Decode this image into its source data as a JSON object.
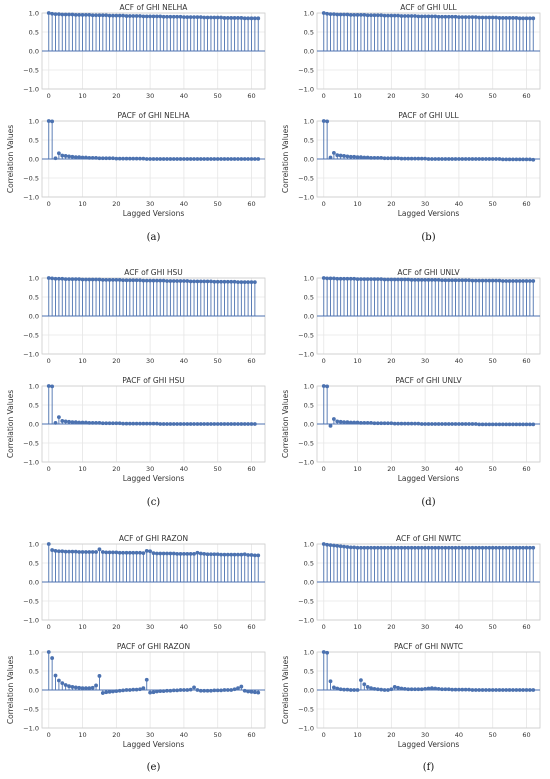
{
  "colors": {
    "series": "#4c72b0",
    "grid": "#e6e6e6",
    "frame": "#cccccc",
    "text": "#333333"
  },
  "labels": {
    "xlabel": "Lagged Versions",
    "ylabel": "Correlation Values"
  },
  "captions": [
    "(a)",
    "(b)",
    "(c)",
    "(d)",
    "(e)",
    "(f)"
  ],
  "chart_data": [
    {
      "type": "stem",
      "panel": "a-top",
      "title": "ACF of GHI NELHA",
      "xlim": [
        -2,
        64
      ],
      "ylim": [
        -1,
        1
      ],
      "xticks": [
        0,
        10,
        20,
        30,
        40,
        50,
        60
      ],
      "yticks": [
        -1,
        -0.5,
        0,
        0.5,
        1
      ],
      "xlabel": "",
      "ylabel": "",
      "lags_max": 62,
      "values": [
        1.0,
        0.98,
        0.97,
        0.97,
        0.96,
        0.96,
        0.96,
        0.96,
        0.95,
        0.95,
        0.95,
        0.95,
        0.95,
        0.94,
        0.94,
        0.94,
        0.94,
        0.94,
        0.93,
        0.93,
        0.93,
        0.93,
        0.93,
        0.92,
        0.92,
        0.92,
        0.92,
        0.92,
        0.91,
        0.91,
        0.91,
        0.91,
        0.91,
        0.91,
        0.9,
        0.9,
        0.9,
        0.9,
        0.9,
        0.9,
        0.89,
        0.89,
        0.89,
        0.89,
        0.89,
        0.89,
        0.88,
        0.88,
        0.88,
        0.88,
        0.88,
        0.88,
        0.87,
        0.87,
        0.87,
        0.87,
        0.87,
        0.87,
        0.86,
        0.86,
        0.86,
        0.86,
        0.86
      ]
    },
    {
      "type": "stem",
      "panel": "a-bottom",
      "title": "PACF of GHI NELHA",
      "xlim": [
        -2,
        64
      ],
      "ylim": [
        -1,
        1
      ],
      "xticks": [
        0,
        10,
        20,
        30,
        40,
        50,
        60
      ],
      "yticks": [
        -1,
        -0.5,
        0,
        0.5,
        1
      ],
      "xlabel": "Lagged Versions",
      "ylabel": "Correlation Values",
      "lags_max": 62,
      "values": [
        1.0,
        0.99,
        0.02,
        0.15,
        0.09,
        0.08,
        0.07,
        0.06,
        0.05,
        0.05,
        0.04,
        0.04,
        0.03,
        0.03,
        0.03,
        0.02,
        0.02,
        0.02,
        0.02,
        0.02,
        0.01,
        0.01,
        0.01,
        0.01,
        0.01,
        0.01,
        0.01,
        0.01,
        0.01,
        0.0,
        0.0,
        0.0,
        0.0,
        0.0,
        0.0,
        0.0,
        0.0,
        0.0,
        0.0,
        0.0,
        0.0,
        0.0,
        0.0,
        0.0,
        0.0,
        0.0,
        0.0,
        0.0,
        0.0,
        0.0,
        0.0,
        0.0,
        0.0,
        0.0,
        0.0,
        0.0,
        0.0,
        0.0,
        0.0,
        0.0,
        0.0,
        0.0,
        0.0
      ]
    },
    {
      "type": "stem",
      "panel": "b-top",
      "title": "ACF of GHI ULL",
      "xlim": [
        -2,
        64
      ],
      "ylim": [
        -1,
        1
      ],
      "xticks": [
        0,
        10,
        20,
        30,
        40,
        50,
        60
      ],
      "yticks": [
        -1,
        -0.5,
        0,
        0.5,
        1
      ],
      "xlabel": "",
      "ylabel": "",
      "lags_max": 62,
      "values": [
        1.0,
        0.98,
        0.97,
        0.97,
        0.96,
        0.96,
        0.96,
        0.96,
        0.95,
        0.95,
        0.95,
        0.95,
        0.95,
        0.94,
        0.94,
        0.94,
        0.94,
        0.94,
        0.93,
        0.93,
        0.93,
        0.93,
        0.93,
        0.92,
        0.92,
        0.92,
        0.92,
        0.92,
        0.91,
        0.91,
        0.91,
        0.91,
        0.91,
        0.91,
        0.9,
        0.9,
        0.9,
        0.9,
        0.9,
        0.9,
        0.89,
        0.89,
        0.89,
        0.89,
        0.89,
        0.89,
        0.88,
        0.88,
        0.88,
        0.88,
        0.88,
        0.88,
        0.87,
        0.87,
        0.87,
        0.87,
        0.87,
        0.87,
        0.86,
        0.86,
        0.86,
        0.86,
        0.86
      ]
    },
    {
      "type": "stem",
      "panel": "b-bottom",
      "title": "PACF of GHI ULL",
      "xlim": [
        -2,
        64
      ],
      "ylim": [
        -1,
        1
      ],
      "xticks": [
        0,
        10,
        20,
        30,
        40,
        50,
        60
      ],
      "yticks": [
        -1,
        -0.5,
        0,
        0.5,
        1
      ],
      "xlabel": "Lagged Versions",
      "ylabel": "Correlation Values",
      "lags_max": 62,
      "values": [
        1.0,
        0.99,
        0.04,
        0.16,
        0.1,
        0.09,
        0.08,
        0.07,
        0.06,
        0.06,
        0.05,
        0.05,
        0.04,
        0.04,
        0.03,
        0.03,
        0.03,
        0.03,
        0.02,
        0.02,
        0.02,
        0.02,
        0.02,
        0.01,
        0.01,
        0.01,
        0.01,
        0.01,
        0.01,
        0.01,
        0.01,
        0.0,
        0.0,
        0.0,
        0.0,
        0.0,
        0.0,
        0.0,
        0.0,
        0.0,
        0.0,
        0.0,
        0.0,
        0.0,
        0.0,
        0.0,
        0.0,
        0.0,
        0.0,
        0.0,
        0.0,
        0.0,
        0.0,
        -0.01,
        -0.01,
        -0.01,
        -0.01,
        -0.01,
        -0.01,
        -0.01,
        -0.01,
        -0.01,
        -0.02
      ]
    },
    {
      "type": "stem",
      "panel": "c-top",
      "title": "ACF of GHI HSU",
      "xlim": [
        -2,
        64
      ],
      "ylim": [
        -1,
        1
      ],
      "xticks": [
        0,
        10,
        20,
        30,
        40,
        50,
        60
      ],
      "yticks": [
        -1,
        -0.5,
        0,
        0.5,
        1
      ],
      "xlabel": "",
      "ylabel": "",
      "lags_max": 61,
      "values": [
        1.0,
        0.99,
        0.98,
        0.98,
        0.98,
        0.97,
        0.97,
        0.97,
        0.97,
        0.97,
        0.96,
        0.96,
        0.96,
        0.96,
        0.96,
        0.96,
        0.95,
        0.95,
        0.95,
        0.95,
        0.95,
        0.95,
        0.94,
        0.94,
        0.94,
        0.94,
        0.94,
        0.94,
        0.93,
        0.93,
        0.93,
        0.93,
        0.93,
        0.93,
        0.93,
        0.92,
        0.92,
        0.92,
        0.92,
        0.92,
        0.92,
        0.92,
        0.91,
        0.91,
        0.91,
        0.91,
        0.91,
        0.91,
        0.91,
        0.9,
        0.9,
        0.9,
        0.9,
        0.9,
        0.9,
        0.9,
        0.89,
        0.89,
        0.89,
        0.89,
        0.89,
        0.89
      ]
    },
    {
      "type": "stem",
      "panel": "c-bottom",
      "title": "PACF of GHI HSU",
      "xlim": [
        -2,
        64
      ],
      "ylim": [
        -1,
        1
      ],
      "xticks": [
        0,
        10,
        20,
        30,
        40,
        50,
        60
      ],
      "yticks": [
        -1,
        -0.5,
        0,
        0.5,
        1
      ],
      "xlabel": "Lagged Versions",
      "ylabel": "Correlation Values",
      "lags_max": 61,
      "values": [
        1.0,
        0.99,
        0.03,
        0.18,
        0.08,
        0.07,
        0.06,
        0.05,
        0.05,
        0.04,
        0.04,
        0.04,
        0.03,
        0.03,
        0.03,
        0.03,
        0.02,
        0.02,
        0.02,
        0.02,
        0.02,
        0.02,
        0.01,
        0.01,
        0.01,
        0.01,
        0.01,
        0.01,
        0.01,
        0.01,
        0.01,
        0.01,
        0.01,
        0.0,
        0.0,
        0.0,
        0.0,
        0.0,
        0.0,
        0.0,
        0.0,
        0.0,
        0.0,
        0.0,
        0.0,
        0.0,
        0.0,
        0.0,
        0.0,
        0.0,
        0.0,
        0.0,
        0.0,
        0.0,
        0.0,
        0.0,
        0.0,
        0.0,
        0.0,
        0.0,
        0.0,
        0.0
      ]
    },
    {
      "type": "stem",
      "panel": "d-top",
      "title": "ACF of GHI UNLV",
      "xlim": [
        -2,
        64
      ],
      "ylim": [
        -1,
        1
      ],
      "xticks": [
        0,
        10,
        20,
        30,
        40,
        50,
        60
      ],
      "yticks": [
        -1,
        -0.5,
        0,
        0.5,
        1
      ],
      "xlabel": "",
      "ylabel": "",
      "lags_max": 62,
      "values": [
        1.0,
        0.99,
        0.99,
        0.99,
        0.98,
        0.98,
        0.98,
        0.98,
        0.98,
        0.98,
        0.97,
        0.97,
        0.97,
        0.97,
        0.97,
        0.97,
        0.97,
        0.97,
        0.96,
        0.96,
        0.96,
        0.96,
        0.96,
        0.96,
        0.96,
        0.96,
        0.95,
        0.95,
        0.95,
        0.95,
        0.95,
        0.95,
        0.95,
        0.95,
        0.95,
        0.94,
        0.94,
        0.94,
        0.94,
        0.94,
        0.94,
        0.94,
        0.94,
        0.94,
        0.93,
        0.93,
        0.93,
        0.93,
        0.93,
        0.93,
        0.93,
        0.93,
        0.93,
        0.92,
        0.92,
        0.92,
        0.92,
        0.92,
        0.92,
        0.92,
        0.92,
        0.92,
        0.92
      ]
    },
    {
      "type": "stem",
      "panel": "d-bottom",
      "title": "PACF of GHI UNLV",
      "xlim": [
        -2,
        64
      ],
      "ylim": [
        -1,
        1
      ],
      "xticks": [
        0,
        10,
        20,
        30,
        40,
        50,
        60
      ],
      "yticks": [
        -1,
        -0.5,
        0,
        0.5,
        1
      ],
      "xlabel": "Lagged Versions",
      "ylabel": "Correlation Values",
      "lags_max": 62,
      "values": [
        1.0,
        0.99,
        -0.05,
        0.13,
        0.07,
        0.06,
        0.05,
        0.05,
        0.04,
        0.04,
        0.04,
        0.03,
        0.03,
        0.03,
        0.03,
        0.02,
        0.02,
        0.02,
        0.02,
        0.02,
        0.02,
        0.01,
        0.01,
        0.01,
        0.01,
        0.01,
        0.01,
        0.01,
        0.01,
        0.0,
        0.0,
        0.0,
        0.0,
        0.0,
        0.0,
        0.0,
        0.0,
        0.0,
        0.0,
        0.0,
        0.0,
        0.0,
        0.0,
        0.0,
        0.0,
        0.0,
        -0.01,
        -0.01,
        -0.01,
        -0.01,
        -0.01,
        -0.01,
        -0.01,
        -0.01,
        -0.01,
        -0.01,
        -0.01,
        -0.01,
        -0.01,
        -0.01,
        -0.01,
        -0.01,
        -0.01
      ]
    },
    {
      "type": "stem",
      "panel": "e-top",
      "title": "ACF of GHI RAZON",
      "xlim": [
        -2,
        64
      ],
      "ylim": [
        -1,
        1
      ],
      "xticks": [
        0,
        10,
        20,
        30,
        40,
        50,
        60
      ],
      "yticks": [
        -1,
        -0.5,
        0,
        0.5,
        1
      ],
      "xlabel": "",
      "ylabel": "",
      "lags_max": 62,
      "values": [
        1.0,
        0.84,
        0.82,
        0.81,
        0.81,
        0.8,
        0.8,
        0.8,
        0.8,
        0.79,
        0.79,
        0.79,
        0.79,
        0.79,
        0.79,
        0.86,
        0.79,
        0.78,
        0.78,
        0.78,
        0.78,
        0.77,
        0.77,
        0.77,
        0.77,
        0.77,
        0.77,
        0.77,
        0.76,
        0.82,
        0.81,
        0.76,
        0.75,
        0.75,
        0.75,
        0.75,
        0.75,
        0.75,
        0.74,
        0.74,
        0.74,
        0.74,
        0.74,
        0.74,
        0.77,
        0.75,
        0.74,
        0.73,
        0.73,
        0.73,
        0.73,
        0.72,
        0.72,
        0.72,
        0.72,
        0.72,
        0.72,
        0.72,
        0.73,
        0.71,
        0.71,
        0.7,
        0.7
      ]
    },
    {
      "type": "stem",
      "panel": "e-bottom",
      "title": "PACF of GHI RAZON",
      "xlim": [
        -2,
        64
      ],
      "ylim": [
        -1,
        1
      ],
      "xticks": [
        0,
        10,
        20,
        30,
        40,
        50,
        60
      ],
      "yticks": [
        -1,
        -0.5,
        0,
        0.5,
        1
      ],
      "xlabel": "Lagged Versions",
      "ylabel": "Correlation Values",
      "lags_max": 62,
      "values": [
        1.0,
        0.84,
        0.38,
        0.25,
        0.18,
        0.13,
        0.1,
        0.08,
        0.07,
        0.06,
        0.05,
        0.05,
        0.05,
        0.06,
        0.12,
        0.37,
        -0.08,
        -0.06,
        -0.05,
        -0.04,
        -0.03,
        -0.02,
        -0.01,
        0.0,
        0.0,
        0.01,
        0.01,
        0.02,
        0.05,
        0.27,
        -0.07,
        -0.06,
        -0.04,
        -0.03,
        -0.03,
        -0.02,
        -0.02,
        -0.01,
        -0.01,
        0.0,
        0.0,
        0.0,
        0.01,
        0.07,
        0.0,
        -0.02,
        -0.02,
        -0.02,
        -0.02,
        -0.01,
        -0.01,
        -0.01,
        0.0,
        0.0,
        0.0,
        0.02,
        0.05,
        0.09,
        -0.02,
        -0.04,
        -0.05,
        -0.06,
        -0.07
      ]
    },
    {
      "type": "stem",
      "panel": "f-top",
      "title": "ACF of GHI NWTC",
      "xlim": [
        -2,
        64
      ],
      "ylim": [
        -1,
        1
      ],
      "xticks": [
        0,
        10,
        20,
        30,
        40,
        50,
        60
      ],
      "yticks": [
        -1,
        -0.5,
        0,
        0.5,
        1
      ],
      "xlabel": "",
      "ylabel": "",
      "lags_max": 62,
      "values": [
        1.0,
        0.98,
        0.97,
        0.96,
        0.95,
        0.94,
        0.93,
        0.92,
        0.91,
        0.91,
        0.9,
        0.9,
        0.9,
        0.9,
        0.9,
        0.9,
        0.9,
        0.9,
        0.9,
        0.9,
        0.9,
        0.9,
        0.9,
        0.9,
        0.9,
        0.9,
        0.9,
        0.9,
        0.9,
        0.9,
        0.9,
        0.9,
        0.9,
        0.9,
        0.9,
        0.9,
        0.9,
        0.9,
        0.9,
        0.9,
        0.9,
        0.9,
        0.9,
        0.9,
        0.9,
        0.9,
        0.9,
        0.9,
        0.9,
        0.9,
        0.9,
        0.9,
        0.9,
        0.9,
        0.9,
        0.9,
        0.9,
        0.9,
        0.9,
        0.9,
        0.9,
        0.9,
        0.9
      ]
    },
    {
      "type": "stem",
      "panel": "f-bottom",
      "title": "PACF of GHI NWTC",
      "xlim": [
        -2,
        64
      ],
      "ylim": [
        -1,
        1
      ],
      "xticks": [
        0,
        10,
        20,
        30,
        40,
        50,
        60
      ],
      "yticks": [
        -1,
        -0.5,
        0,
        0.5,
        1
      ],
      "xlabel": "Lagged Versions",
      "ylabel": "Correlation Values",
      "lags_max": 62,
      "values": [
        1.0,
        0.98,
        0.23,
        0.07,
        0.04,
        0.02,
        0.01,
        0.01,
        0.0,
        0.0,
        0.0,
        0.26,
        0.15,
        0.08,
        0.05,
        0.03,
        0.02,
        0.01,
        0.0,
        0.0,
        0.02,
        0.08,
        0.06,
        0.04,
        0.03,
        0.02,
        0.02,
        0.02,
        0.02,
        0.02,
        0.03,
        0.04,
        0.05,
        0.04,
        0.03,
        0.02,
        0.02,
        0.02,
        0.01,
        0.01,
        0.01,
        0.01,
        0.01,
        0.01,
        0.0,
        0.0,
        0.0,
        0.0,
        0.0,
        0.0,
        0.0,
        0.0,
        0.0,
        0.0,
        0.0,
        0.0,
        0.0,
        0.0,
        0.0,
        0.0,
        0.0,
        0.0,
        0.0
      ]
    }
  ]
}
